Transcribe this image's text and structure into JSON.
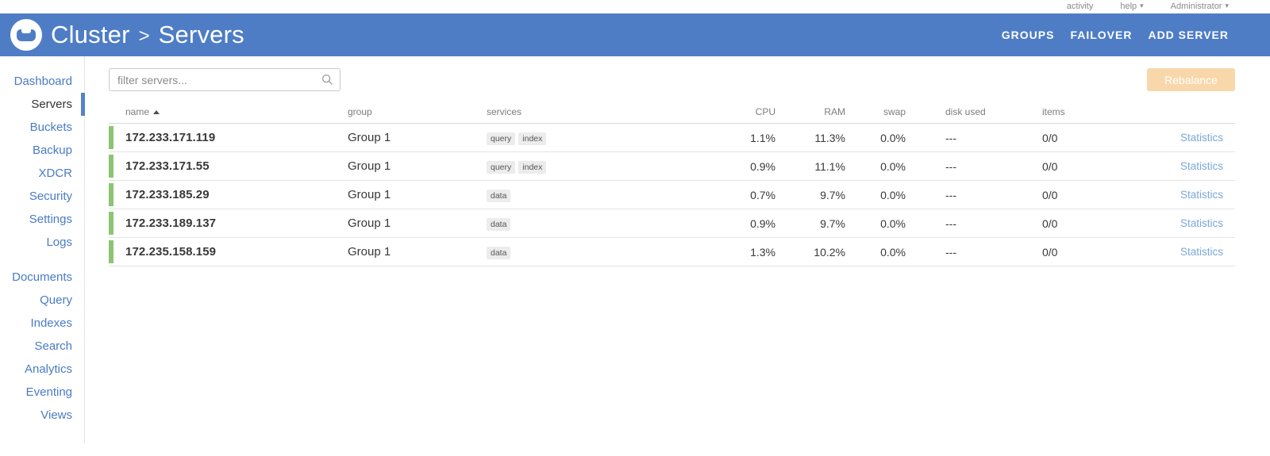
{
  "topbar": {
    "activity": "activity",
    "help": "help",
    "user": "Administrator"
  },
  "header": {
    "breadcrumb": {
      "parent": "Cluster",
      "separator": ">",
      "current": "Servers"
    },
    "actions": [
      "GROUPS",
      "FAILOVER",
      "ADD SERVER"
    ]
  },
  "sidebar": {
    "items": [
      {
        "label": "Dashboard"
      },
      {
        "label": "Servers",
        "active": true
      },
      {
        "label": "Buckets"
      },
      {
        "label": "Backup"
      },
      {
        "label": "XDCR"
      },
      {
        "label": "Security"
      },
      {
        "label": "Settings"
      },
      {
        "label": "Logs"
      },
      {
        "label": "Documents",
        "section_break": true
      },
      {
        "label": "Query"
      },
      {
        "label": "Indexes"
      },
      {
        "label": "Search"
      },
      {
        "label": "Analytics"
      },
      {
        "label": "Eventing"
      },
      {
        "label": "Views"
      }
    ]
  },
  "toolbar": {
    "filter_placeholder": "filter servers...",
    "rebalance_label": "Rebalance"
  },
  "table": {
    "headers": [
      "name",
      "group",
      "services",
      "CPU",
      "RAM",
      "swap",
      "disk used",
      "items"
    ],
    "sort": {
      "column": "name",
      "direction": "asc"
    },
    "stats_label": "Statistics",
    "rows": [
      {
        "name": "172.233.171.119",
        "group": "Group 1",
        "services": [
          "query",
          "index"
        ],
        "cpu": "1.1%",
        "ram": "11.3%",
        "swap": "0.0%",
        "disk_used": "---",
        "items": "0/0"
      },
      {
        "name": "172.233.171.55",
        "group": "Group 1",
        "services": [
          "query",
          "index"
        ],
        "cpu": "0.9%",
        "ram": "11.1%",
        "swap": "0.0%",
        "disk_used": "---",
        "items": "0/0"
      },
      {
        "name": "172.233.185.29",
        "group": "Group 1",
        "services": [
          "data"
        ],
        "cpu": "0.7%",
        "ram": "9.7%",
        "swap": "0.0%",
        "disk_used": "---",
        "items": "0/0"
      },
      {
        "name": "172.233.189.137",
        "group": "Group 1",
        "services": [
          "data"
        ],
        "cpu": "0.9%",
        "ram": "9.7%",
        "swap": "0.0%",
        "disk_used": "---",
        "items": "0/0"
      },
      {
        "name": "172.235.158.159",
        "group": "Group 1",
        "services": [
          "data"
        ],
        "cpu": "1.3%",
        "ram": "10.2%",
        "swap": "0.0%",
        "disk_used": "---",
        "items": "0/0"
      }
    ]
  },
  "colors": {
    "header_blue": "#4e7dc6",
    "sidebar_link": "#4a7bc4",
    "node_healthy_green": "#8bc573",
    "rebalance_orange": "#f0a238",
    "stats_link": "#7ba7d7"
  }
}
